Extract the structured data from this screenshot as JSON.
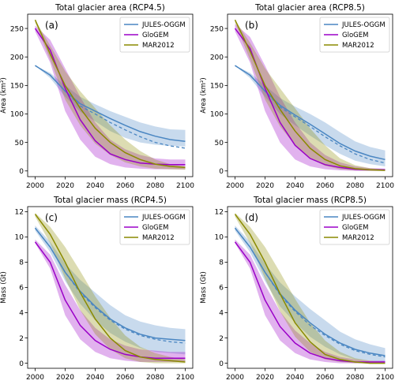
{
  "colors": {
    "jules": "#4a86c2",
    "glogem": "#9b00c8",
    "mar": "#8a8a00"
  },
  "chart_data": [
    {
      "type": "line",
      "title": "Total glacier area (RCP4.5)",
      "panel_label": "(a)",
      "xlabel": "",
      "ylabel": "Area (km²)",
      "xlim": [
        1995,
        2105
      ],
      "ylim": [
        -10,
        275
      ],
      "xticks": [
        2000,
        2020,
        2040,
        2060,
        2080,
        2100
      ],
      "yticks": [
        0,
        50,
        100,
        150,
        200,
        250
      ],
      "grid": false,
      "legend_position": "top-right",
      "x": [
        2000,
        2010,
        2020,
        2030,
        2040,
        2050,
        2060,
        2070,
        2080,
        2090,
        2100
      ],
      "series": [
        {
          "name": "JULES-OGGM",
          "color": "#4a86c2",
          "values": [
            185,
            168,
            140,
            118,
            105,
            92,
            80,
            69,
            61,
            55,
            52
          ],
          "dashed": [
            185,
            168,
            140,
            114,
            100,
            85,
            72,
            60,
            50,
            44,
            40
          ],
          "lower": [
            185,
            163,
            130,
            104,
            87,
            70,
            58,
            50,
            46,
            44,
            43
          ],
          "upper": [
            185,
            172,
            150,
            130,
            117,
            105,
            95,
            85,
            78,
            73,
            72
          ]
        },
        {
          "name": "GloGEM",
          "color": "#9b00c8",
          "values": [
            250,
            212,
            145,
            90,
            53,
            30,
            20,
            14,
            12,
            11,
            11
          ],
          "lower": [
            245,
            190,
            105,
            55,
            25,
            12,
            6,
            4,
            3,
            3,
            3
          ],
          "upper": [
            255,
            230,
            180,
            130,
            85,
            55,
            38,
            28,
            22,
            20,
            20
          ]
        },
        {
          "name": "MAR2012",
          "color": "#8a8a00",
          "values": [
            265,
            205,
            150,
            110,
            75,
            50,
            32,
            20,
            12,
            8,
            6
          ],
          "lower": [
            260,
            195,
            125,
            80,
            48,
            28,
            15,
            8,
            4,
            3,
            2
          ],
          "upper": [
            265,
            220,
            175,
            140,
            110,
            80,
            55,
            35,
            20,
            12,
            8
          ]
        }
      ]
    },
    {
      "type": "line",
      "title": "Total glacier area (RCP8.5)",
      "panel_label": "(b)",
      "xlabel": "",
      "ylabel": "Area (km²)",
      "xlim": [
        1995,
        2105
      ],
      "ylim": [
        -10,
        275
      ],
      "xticks": [
        2000,
        2020,
        2040,
        2060,
        2080,
        2100
      ],
      "yticks": [
        0,
        50,
        100,
        150,
        200,
        250
      ],
      "grid": false,
      "legend_position": "top-right",
      "x": [
        2000,
        2010,
        2020,
        2030,
        2040,
        2050,
        2060,
        2070,
        2080,
        2090,
        2100
      ],
      "series": [
        {
          "name": "JULES-OGGM",
          "color": "#4a86c2",
          "values": [
            185,
            168,
            140,
            115,
            98,
            82,
            65,
            48,
            35,
            26,
            20
          ],
          "dashed": [
            185,
            168,
            140,
            112,
            95,
            78,
            60,
            44,
            30,
            20,
            14
          ],
          "lower": [
            185,
            163,
            130,
            100,
            80,
            62,
            45,
            30,
            18,
            12,
            8
          ],
          "upper": [
            185,
            172,
            150,
            128,
            113,
            100,
            85,
            68,
            52,
            42,
            36
          ]
        },
        {
          "name": "GloGEM",
          "color": "#9b00c8",
          "values": [
            250,
            215,
            145,
            85,
            45,
            22,
            11,
            6,
            3,
            2,
            2
          ],
          "lower": [
            245,
            190,
            105,
            50,
            20,
            8,
            3,
            1,
            0,
            0,
            0
          ],
          "upper": [
            258,
            235,
            185,
            130,
            85,
            50,
            28,
            15,
            8,
            5,
            4
          ]
        },
        {
          "name": "MAR2012",
          "color": "#8a8a00",
          "values": [
            265,
            210,
            150,
            108,
            70,
            40,
            20,
            9,
            4,
            2,
            1
          ],
          "lower": [
            260,
            195,
            125,
            78,
            45,
            22,
            9,
            3,
            1,
            0,
            0
          ],
          "upper": [
            265,
            225,
            180,
            145,
            110,
            75,
            45,
            22,
            10,
            5,
            3
          ]
        }
      ]
    },
    {
      "type": "line",
      "title": "Total glacier mass (RCP4.5)",
      "panel_label": "(c)",
      "xlabel": "",
      "ylabel": "Mass (Gt)",
      "xlim": [
        1995,
        2105
      ],
      "ylim": [
        -0.4,
        12.4
      ],
      "xticks": [
        2000,
        2020,
        2040,
        2060,
        2080,
        2100
      ],
      "yticks": [
        0,
        2,
        4,
        6,
        8,
        10,
        12
      ],
      "grid": false,
      "legend_position": "top-right",
      "x": [
        2000,
        2010,
        2020,
        2030,
        2040,
        2050,
        2060,
        2070,
        2080,
        2090,
        2100
      ],
      "series": [
        {
          "name": "JULES-OGGM",
          "color": "#4a86c2",
          "values": [
            10.7,
            9.2,
            7.2,
            5.7,
            4.5,
            3.5,
            2.8,
            2.3,
            2.0,
            1.9,
            1.8
          ],
          "dashed": [
            10.7,
            9.2,
            7.2,
            5.6,
            4.4,
            3.4,
            2.7,
            2.2,
            1.9,
            1.7,
            1.6
          ],
          "lower": [
            10.5,
            8.8,
            6.5,
            4.7,
            3.4,
            2.4,
            1.7,
            1.2,
            0.9,
            0.8,
            0.7
          ],
          "upper": [
            10.9,
            9.6,
            7.9,
            6.6,
            5.6,
            4.6,
            3.8,
            3.3,
            3.0,
            2.8,
            2.7
          ]
        },
        {
          "name": "GloGEM",
          "color": "#9b00c8",
          "values": [
            9.6,
            8.0,
            5.0,
            3.0,
            1.8,
            1.1,
            0.7,
            0.5,
            0.4,
            0.4,
            0.4
          ],
          "lower": [
            9.5,
            7.5,
            3.8,
            1.9,
            0.9,
            0.4,
            0.2,
            0.1,
            0.1,
            0.1,
            0.1
          ],
          "upper": [
            9.8,
            8.6,
            6.2,
            4.2,
            2.8,
            1.9,
            1.4,
            1.1,
            1.0,
            0.9,
            0.9
          ]
        },
        {
          "name": "MAR2012",
          "color": "#8a8a00",
          "values": [
            11.8,
            10.2,
            8.0,
            5.6,
            3.5,
            2.0,
            1.0,
            0.5,
            0.3,
            0.2,
            0.1
          ],
          "lower": [
            11.6,
            9.5,
            6.7,
            4.2,
            2.3,
            1.1,
            0.4,
            0.1,
            0.0,
            0.0,
            0.0
          ],
          "upper": [
            11.9,
            10.8,
            9.2,
            7.3,
            5.3,
            3.6,
            2.2,
            1.3,
            0.8,
            0.5,
            0.3
          ]
        }
      ]
    },
    {
      "type": "line",
      "title": "Total glacier mass (RCP8.5)",
      "panel_label": "(d)",
      "xlabel": "",
      "ylabel": "Mass (Gt)",
      "xlim": [
        1995,
        2105
      ],
      "ylim": [
        -0.4,
        12.4
      ],
      "xticks": [
        2000,
        2020,
        2040,
        2060,
        2080,
        2100
      ],
      "yticks": [
        0,
        2,
        4,
        6,
        8,
        10,
        12
      ],
      "grid": false,
      "legend_position": "top-right",
      "x": [
        2000,
        2010,
        2020,
        2030,
        2040,
        2050,
        2060,
        2070,
        2080,
        2090,
        2100
      ],
      "series": [
        {
          "name": "JULES-OGGM",
          "color": "#4a86c2",
          "values": [
            10.7,
            9.2,
            7.2,
            5.5,
            4.2,
            3.2,
            2.3,
            1.6,
            1.1,
            0.8,
            0.6
          ],
          "dashed": [
            10.7,
            9.2,
            7.2,
            5.4,
            4.1,
            3.0,
            2.2,
            1.5,
            1.0,
            0.7,
            0.5
          ],
          "lower": [
            10.5,
            8.8,
            6.5,
            4.5,
            3.2,
            2.1,
            1.3,
            0.7,
            0.3,
            0.2,
            0.1
          ],
          "upper": [
            10.9,
            9.6,
            7.9,
            6.4,
            5.3,
            4.3,
            3.4,
            2.5,
            1.9,
            1.5,
            1.2
          ]
        },
        {
          "name": "GloGEM",
          "color": "#9b00c8",
          "values": [
            9.6,
            8.0,
            5.0,
            2.9,
            1.6,
            0.8,
            0.4,
            0.2,
            0.1,
            0.1,
            0.1
          ],
          "lower": [
            9.5,
            7.5,
            3.8,
            1.8,
            0.8,
            0.3,
            0.1,
            0.0,
            0.0,
            0.0,
            0.0
          ],
          "upper": [
            9.8,
            8.6,
            6.2,
            4.1,
            2.6,
            1.6,
            0.9,
            0.5,
            0.3,
            0.2,
            0.2
          ]
        },
        {
          "name": "MAR2012",
          "color": "#8a8a00",
          "values": [
            11.8,
            10.2,
            8.0,
            5.5,
            3.2,
            1.7,
            0.7,
            0.3,
            0.1,
            0.0,
            0.0
          ],
          "lower": [
            11.6,
            9.5,
            6.7,
            4.1,
            2.1,
            0.9,
            0.3,
            0.1,
            0.0,
            0.0,
            0.0
          ],
          "upper": [
            11.9,
            10.8,
            9.2,
            7.2,
            5.1,
            3.2,
            1.8,
            0.9,
            0.4,
            0.2,
            0.1
          ]
        }
      ]
    }
  ]
}
